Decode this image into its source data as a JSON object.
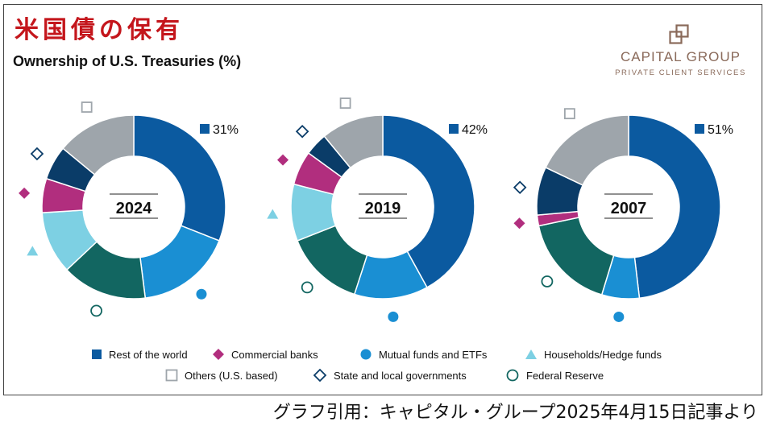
{
  "header": {
    "title": "米国債の保有",
    "subtitle": "Ownership of U.S. Treasuries (%)"
  },
  "logo": {
    "name": "CAPITAL GROUP",
    "tagline": "PRIVATE CLIENT SERVICES"
  },
  "footer": {
    "credit": "グラフ引用：キャピタル・グループ2025年4月15日記事より"
  },
  "legend": {
    "items": [
      {
        "key": "rest",
        "label": "Rest of the world",
        "marker": "square-filled"
      },
      {
        "key": "banks",
        "label": "Commercial banks",
        "marker": "diamond-filled"
      },
      {
        "key": "mutual",
        "label": "Mutual funds and ETFs",
        "marker": "circle-filled"
      },
      {
        "key": "households",
        "label": "Households/Hedge funds",
        "marker": "triangle-filled"
      },
      {
        "key": "others",
        "label": "Others (U.S. based)",
        "marker": "square-open"
      },
      {
        "key": "state",
        "label": "State and local governments",
        "marker": "diamond-open"
      },
      {
        "key": "fed",
        "label": "Federal Reserve",
        "marker": "circle-open"
      }
    ]
  },
  "colors": {
    "rest": "#0b5aa0",
    "mutual": "#1a8fd3",
    "fed": "#126661",
    "households": "#7dd0e3",
    "banks": "#b12e7e",
    "state": "#0a3c68",
    "others": "#9ea5ab"
  },
  "chart_data": [
    {
      "type": "donut",
      "year": "2024",
      "highlight_label": "31%",
      "categories": [
        "Rest of the world",
        "Mutual funds and ETFs",
        "Federal Reserve",
        "Households/Hedge funds",
        "Commercial banks",
        "State and local governments",
        "Others (U.S. based)"
      ],
      "values": [
        31,
        17,
        15,
        11,
        6,
        6,
        14
      ]
    },
    {
      "type": "donut",
      "year": "2019",
      "highlight_label": "42%",
      "categories": [
        "Rest of the world",
        "Mutual funds and ETFs",
        "Federal Reserve",
        "Households/Hedge funds",
        "Commercial banks",
        "State and local governments",
        "Others (U.S. based)"
      ],
      "values": [
        42,
        13,
        14,
        10,
        6,
        4,
        11
      ]
    },
    {
      "type": "donut",
      "year": "2007",
      "highlight_label": "51%",
      "categories": [
        "Rest of the world",
        "Mutual funds and ETFs",
        "Federal Reserve",
        "Households/Hedge funds",
        "Commercial banks",
        "State and local governments",
        "Others (U.S. based)"
      ],
      "values": [
        51,
        7,
        18,
        0,
        2,
        9,
        19
      ]
    }
  ]
}
